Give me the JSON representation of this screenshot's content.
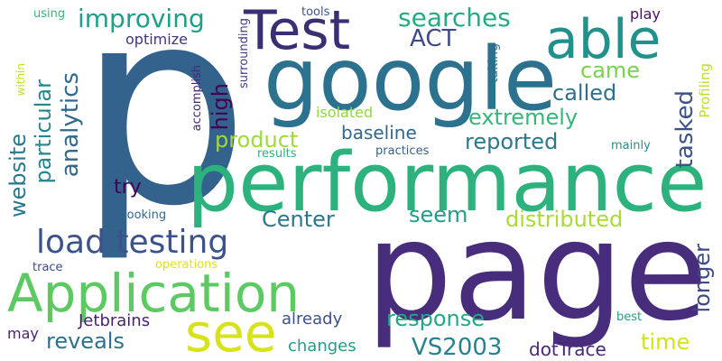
{
  "words": [
    {
      "id": "p",
      "text": "p",
      "color": "#33628D"
    },
    {
      "id": "page",
      "text": "page",
      "color": "#472D7B"
    },
    {
      "id": "google",
      "text": "google",
      "color": "#2C728E"
    },
    {
      "id": "performance",
      "text": "performance",
      "color": "#2DB27D"
    },
    {
      "id": "application",
      "text": "Application",
      "color": "#5DC963"
    },
    {
      "id": "test",
      "text": "Test",
      "color": "#3B2F73"
    },
    {
      "id": "able",
      "text": "able",
      "color": "#21918C"
    },
    {
      "id": "load_testing",
      "text": "load testing",
      "color": "#3B528B"
    },
    {
      "id": "see",
      "text": "see",
      "color": "#D8E219"
    },
    {
      "id": "improving",
      "text": "improving",
      "color": "#1F9E89"
    },
    {
      "id": "searches",
      "text": "searches",
      "color": "#25AB82"
    },
    {
      "id": "analytics",
      "text": "analytics",
      "color": "#31688E"
    },
    {
      "id": "website",
      "text": "website",
      "color": "#2A788E"
    },
    {
      "id": "particular",
      "text": "particular",
      "color": "#24868E"
    },
    {
      "id": "high",
      "text": "high",
      "color": "#440154"
    },
    {
      "id": "act",
      "text": "ACT",
      "color": "#3E4A89"
    },
    {
      "id": "came",
      "text": "came",
      "color": "#7AD151"
    },
    {
      "id": "called",
      "text": "called",
      "color": "#2D708E"
    },
    {
      "id": "extremely",
      "text": "extremely",
      "color": "#35B779"
    },
    {
      "id": "tasked",
      "text": "tasked",
      "color": "#3B528B"
    },
    {
      "id": "product",
      "text": "product",
      "color": "#A0DA39"
    },
    {
      "id": "reported",
      "text": "reported",
      "color": "#2A788E"
    },
    {
      "id": "baseline",
      "text": "baseline",
      "color": "#31688E"
    },
    {
      "id": "isolated",
      "text": "isolated",
      "color": "#90D743"
    },
    {
      "id": "profiling",
      "text": "Profiling",
      "color": "#BDDF26"
    },
    {
      "id": "try",
      "text": "try",
      "color": "#440154"
    },
    {
      "id": "center",
      "text": "Center",
      "color": "#2A788E"
    },
    {
      "id": "seem",
      "text": "seem",
      "color": "#1F9E89"
    },
    {
      "id": "distributed",
      "text": "distributed",
      "color": "#A8DB34"
    },
    {
      "id": "longer",
      "text": "longer",
      "color": "#3E4A89"
    },
    {
      "id": "response",
      "text": "response",
      "color": "#22A884"
    },
    {
      "id": "reveals",
      "text": "reveals",
      "color": "#2C728E"
    },
    {
      "id": "time",
      "text": "time",
      "color": "#D2E21B"
    },
    {
      "id": "vs2003",
      "text": "VS2003",
      "color": "#26828E"
    },
    {
      "id": "dottrace",
      "text": "dotTrace",
      "color": "#482878"
    },
    {
      "id": "jetbrains",
      "text": "Jetbrains",
      "color": "#481F70"
    },
    {
      "id": "already",
      "text": "already",
      "color": "#3B528B"
    },
    {
      "id": "changes",
      "text": "changes",
      "color": "#1F9E89"
    },
    {
      "id": "may",
      "text": "may",
      "color": "#482475"
    },
    {
      "id": "best",
      "text": "best",
      "color": "#20A386"
    },
    {
      "id": "optimize",
      "text": "optimize",
      "color": "#46327E"
    },
    {
      "id": "using",
      "text": "using",
      "color": "#35B779"
    },
    {
      "id": "tools",
      "text": "tools",
      "color": "#3B528B"
    },
    {
      "id": "play",
      "text": "play",
      "color": "#471164"
    },
    {
      "id": "taking",
      "text": "taking",
      "color": "#2E6E8E"
    },
    {
      "id": "within",
      "text": "within",
      "color": "#BDDF26"
    },
    {
      "id": "surrounding",
      "text": "surrounding",
      "color": "#433E85"
    },
    {
      "id": "accomplish",
      "text": "accomplish",
      "color": "#482878"
    },
    {
      "id": "practices",
      "text": "practices",
      "color": "#33638D"
    },
    {
      "id": "results",
      "text": "results",
      "color": "#2DB27D"
    },
    {
      "id": "mainly",
      "text": "mainly",
      "color": "#21918C"
    },
    {
      "id": "looking",
      "text": "looking",
      "color": "#31688E"
    },
    {
      "id": "trace",
      "text": "trace",
      "color": "#3E4A89"
    },
    {
      "id": "operations",
      "text": "operations",
      "color": "#DDE318"
    }
  ]
}
